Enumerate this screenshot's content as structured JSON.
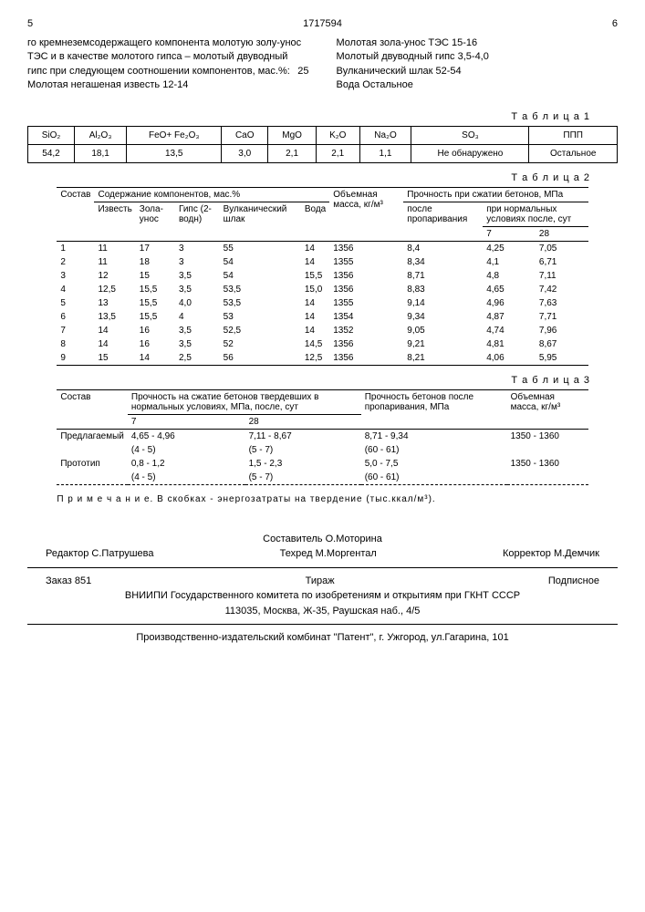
{
  "header": {
    "page_left": "5",
    "doc_num": "1717594",
    "page_right": "6"
  },
  "text_left": "го кремнеземсодержащего компонента молотую золу-унос ТЭС и в качестве молотого гипса – молотый двуводный гипс при следующем соотношении компонентов, мас.%:",
  "text_left_2": "Молотая негашеная известь 12-14",
  "line_num": "25",
  "text_right_1": "Молотая зола-унос ТЭС 15-16",
  "text_right_2": "Молотый двуводный гипс 3,5-4,0",
  "text_right_3": "Вулканический шлак 52-54",
  "text_right_4": "Вода Остальное",
  "table1": {
    "label": "Т а б л и ц а 1",
    "headers": [
      "SiO₂",
      "Al₂O₃",
      "FeO+ Fe₂O₃",
      "CaO",
      "MgO",
      "K₂O",
      "Na₂O",
      "SO₃",
      "ППП"
    ],
    "row": [
      "54,2",
      "18,1",
      "13,5",
      "3,0",
      "2,1",
      "2,1",
      "1,1",
      "Не обнаружено",
      "Остальное"
    ]
  },
  "table2": {
    "label": "Т а б л и ц а  2",
    "h_sostav": "Состав",
    "h_content": "Содержание компонентов, мас.%",
    "h_obem": "Объемная масса, кг/м³",
    "h_proch": "Прочность при сжатии бетонов, МПа",
    "sub_izvest": "Известь",
    "sub_zola": "Зола-унос",
    "sub_gips": "Гипс (2-водн)",
    "sub_vulk": "Вулканический шлак",
    "sub_voda": "Вода",
    "sub_posle": "после пропаривания",
    "sub_norm": "при нормальных условиях после,   сут",
    "sub_7": "7",
    "sub_28": "28",
    "rows": [
      [
        "1",
        "11",
        "17",
        "3",
        "55",
        "14",
        "1356",
        "8,4",
        "4,25",
        "7,05"
      ],
      [
        "2",
        "11",
        "18",
        "3",
        "54",
        "14",
        "1355",
        "8,34",
        "4,1",
        "6,71"
      ],
      [
        "3",
        "12",
        "15",
        "3,5",
        "54",
        "15,5",
        "1356",
        "8,71",
        "4,8",
        "7,11"
      ],
      [
        "4",
        "12,5",
        "15,5",
        "3,5",
        "53,5",
        "15,0",
        "1356",
        "8,83",
        "4,65",
        "7,42"
      ],
      [
        "5",
        "13",
        "15,5",
        "4,0",
        "53,5",
        "14",
        "1355",
        "9,14",
        "4,96",
        "7,63"
      ],
      [
        "6",
        "13,5",
        "15,5",
        "4",
        "53",
        "14",
        "1354",
        "9,34",
        "4,87",
        "7,71"
      ],
      [
        "7",
        "14",
        "16",
        "3,5",
        "52,5",
        "14",
        "1352",
        "9,05",
        "4,74",
        "7,96"
      ],
      [
        "8",
        "14",
        "16",
        "3,5",
        "52",
        "14,5",
        "1356",
        "9,21",
        "4,81",
        "8,67"
      ],
      [
        "9",
        "15",
        "14",
        "2,5",
        "56",
        "12,5",
        "1356",
        "8,21",
        "4,06",
        "5,95"
      ]
    ]
  },
  "table3": {
    "label": "Т а б л и ц а  3",
    "h_sostav": "Состав",
    "h_proch": "Прочность на сжатие бетонов твердевших в нормальных условиях, МПа, после, сут",
    "h_7": "7",
    "h_28": "28",
    "h_posle": "Прочность бетонов после пропаривания, МПа",
    "h_obem": "Объемная масса, кг/м³",
    "r1_label": "Предлагаемый",
    "r1": [
      "4,65 - 4,96",
      "7,11 - 8,67",
      "8,71 - 9,34",
      "1350 - 1360"
    ],
    "r1b": [
      "(4 - 5)",
      "(5 - 7)",
      "(60 - 61)",
      ""
    ],
    "r2_label": "Прототип",
    "r2": [
      "0,8 - 1,2",
      "1,5 - 2,3",
      "5,0 - 7,5",
      "1350 - 1360"
    ],
    "r2b": [
      "(4 - 5)",
      "(5 - 7)",
      "(60 - 61)",
      ""
    ]
  },
  "note": "П р и м е ч а н и е.  В скобках - энергозатраты на твердение (тыс.ккал/м³).",
  "credits": {
    "composer": "Составитель О.Моторина",
    "editor": "Редактор С.Патрушева",
    "tech": "Техред М.Моргентал",
    "corrector": "Корректор М.Демчик",
    "order": "Заказ 851",
    "tirazh": "Тираж",
    "sub": "Подписное",
    "org": "ВНИИПИ Государственного комитета по изобретениям и открытиям при ГКНТ СССР",
    "addr": "113035, Москва, Ж-35, Раушская наб., 4/5",
    "footer": "Производственно-издательский комбинат \"Патент\", г. Ужгород, ул.Гагарина, 101"
  }
}
